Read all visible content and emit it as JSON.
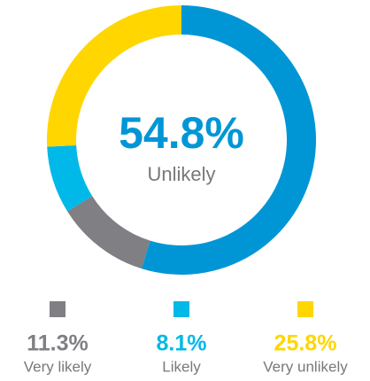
{
  "chart_data": {
    "type": "pie",
    "categories": [
      "Unlikely",
      "Very likely",
      "Likely",
      "Very unlikely"
    ],
    "values": [
      54.8,
      11.3,
      8.1,
      25.8
    ],
    "value_labels": [
      "54.8%",
      "11.3%",
      "8.1%",
      "25.8%"
    ],
    "colors": [
      "#0096d6",
      "#7f7f84",
      "#00b9e8",
      "#ffd600"
    ]
  }
}
